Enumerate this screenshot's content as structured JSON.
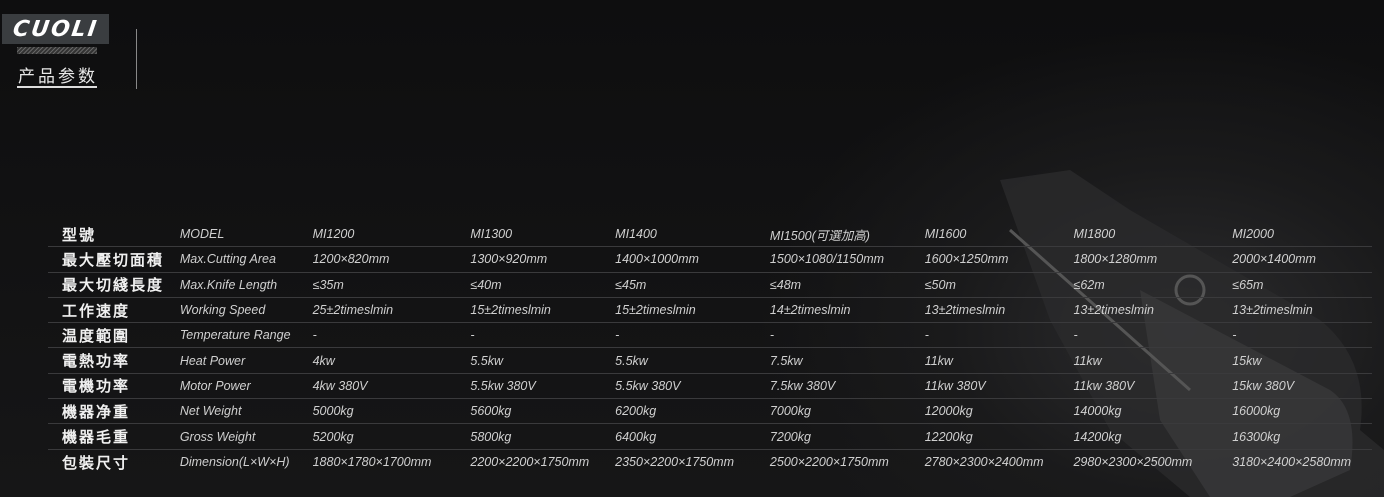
{
  "brand": {
    "logo": "CUOLI",
    "subtitle": "产品参数"
  },
  "colors": {
    "background": "#111112",
    "text": "#d0d0d0",
    "logo_box": "#3a3d40"
  },
  "table": {
    "rows": [
      {
        "cn": "型號",
        "en": "MODEL",
        "values": [
          "MI1200",
          "MI1300",
          "MI1400",
          "MI1500(可選加高)",
          "MI1600",
          "MI1800",
          "MI2000"
        ]
      },
      {
        "cn": "最大壓切面積",
        "en": "Max.Cutting Area",
        "values": [
          "1200×820mm",
          "1300×920mm",
          "1400×1000mm",
          "1500×1080/1150mm",
          "1600×1250mm",
          "1800×1280mm",
          "2000×1400mm"
        ]
      },
      {
        "cn": "最大切綫長度",
        "en": "Max.Knife Length",
        "values": [
          "≤35m",
          "≤40m",
          "≤45m",
          "≤48m",
          "≤50m",
          "≤62m",
          "≤65m"
        ]
      },
      {
        "cn": "工作速度",
        "en": "Working Speed",
        "values": [
          "25±2timeslmin",
          "15±2timeslmin",
          "15±2timeslmin",
          "14±2timeslmin",
          "13±2timeslmin",
          "13±2timeslmin",
          "13±2timeslmin"
        ]
      },
      {
        "cn": "温度範圍",
        "en": "Temperature Range",
        "values": [
          "-",
          "-",
          "-",
          "-",
          "-",
          "-",
          "-"
        ]
      },
      {
        "cn": "電熱功率",
        "en": "Heat Power",
        "values": [
          "4kw",
          "5.5kw",
          "5.5kw",
          "7.5kw",
          "11kw",
          "11kw",
          "15kw"
        ]
      },
      {
        "cn": "電機功率",
        "en": "Motor Power",
        "values": [
          "4kw 380V",
          "5.5kw 380V",
          "5.5kw 380V",
          "7.5kw 380V",
          "11kw 380V",
          "11kw 380V",
          "15kw 380V"
        ]
      },
      {
        "cn": "機器净重",
        "en": "Net Weight",
        "values": [
          "5000kg",
          "5600kg",
          "6200kg",
          "7000kg",
          "12000kg",
          "14000kg",
          "16000kg"
        ]
      },
      {
        "cn": "機器毛重",
        "en": "Gross Weight",
        "values": [
          "5200kg",
          "5800kg",
          "6400kg",
          "7200kg",
          "12200kg",
          "14200kg",
          "16300kg"
        ]
      },
      {
        "cn": "包裝尺寸",
        "en": "Dimension(L×W×H)",
        "values": [
          "1880×1780×1700mm",
          "2200×2200×1750mm",
          "2350×2200×1750mm",
          "2500×2200×1750mm",
          "2780×2300×2400mm",
          "2980×2300×2500mm",
          "3180×2400×2580mm"
        ]
      }
    ]
  }
}
